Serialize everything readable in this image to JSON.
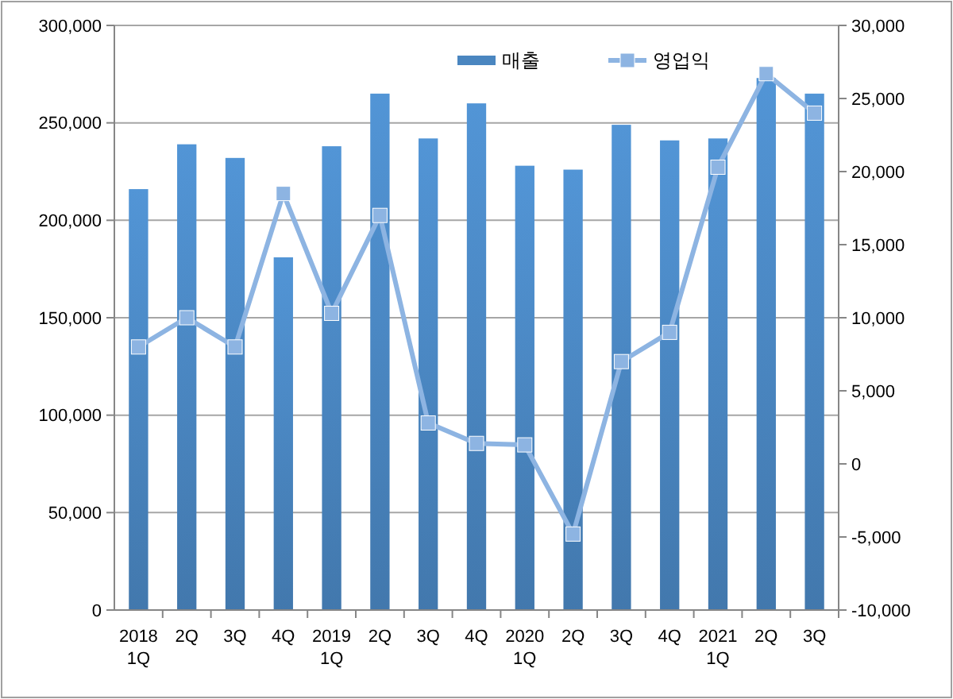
{
  "chart_data": {
    "type": "bar",
    "categories": [
      "2018\n1Q",
      "2Q",
      "3Q",
      "4Q",
      "2019\n1Q",
      "2Q",
      "3Q",
      "4Q",
      "2020\n1Q",
      "2Q",
      "3Q",
      "4Q",
      "2021\n1Q",
      "2Q",
      "3Q"
    ],
    "series": [
      {
        "name": "매출",
        "color": "#4a86c0",
        "values": [
          216000,
          239000,
          232000,
          181000,
          238000,
          265000,
          242000,
          260000,
          228000,
          226000,
          249000,
          241000,
          242000,
          273000,
          265000
        ]
      },
      {
        "name": "영업익",
        "type": "line",
        "axis": "y2",
        "color": "#8db4e2",
        "marker": "square",
        "values": [
          8000,
          10000,
          8000,
          18500,
          10300,
          17000,
          2800,
          1400,
          1300,
          -4800,
          7000,
          9000,
          20300,
          26700,
          24000
        ]
      }
    ],
    "ylim": [
      0,
      300000
    ],
    "yticks": [
      {
        "value": 0,
        "label": "0"
      },
      {
        "value": 50000,
        "label": "50,000"
      },
      {
        "value": 100000,
        "label": "100,000"
      },
      {
        "value": 150000,
        "label": "150,000"
      },
      {
        "value": 200000,
        "label": "200,000"
      },
      {
        "value": 250000,
        "label": "250,000"
      },
      {
        "value": 300000,
        "label": "300,000"
      }
    ],
    "y2lim": [
      -10000,
      30000
    ],
    "y2ticks": [
      {
        "value": -10000,
        "label": "-10,000"
      },
      {
        "value": -5000,
        "label": "-5,000"
      },
      {
        "value": 0,
        "label": "0"
      },
      {
        "value": 5000,
        "label": "5,000"
      },
      {
        "value": 10000,
        "label": "10,000"
      },
      {
        "value": 15000,
        "label": "15,000"
      },
      {
        "value": 20000,
        "label": "20,000"
      },
      {
        "value": 25000,
        "label": "25,000"
      },
      {
        "value": 30000,
        "label": "30,000"
      }
    ],
    "grid": "y",
    "legend": "top right"
  }
}
